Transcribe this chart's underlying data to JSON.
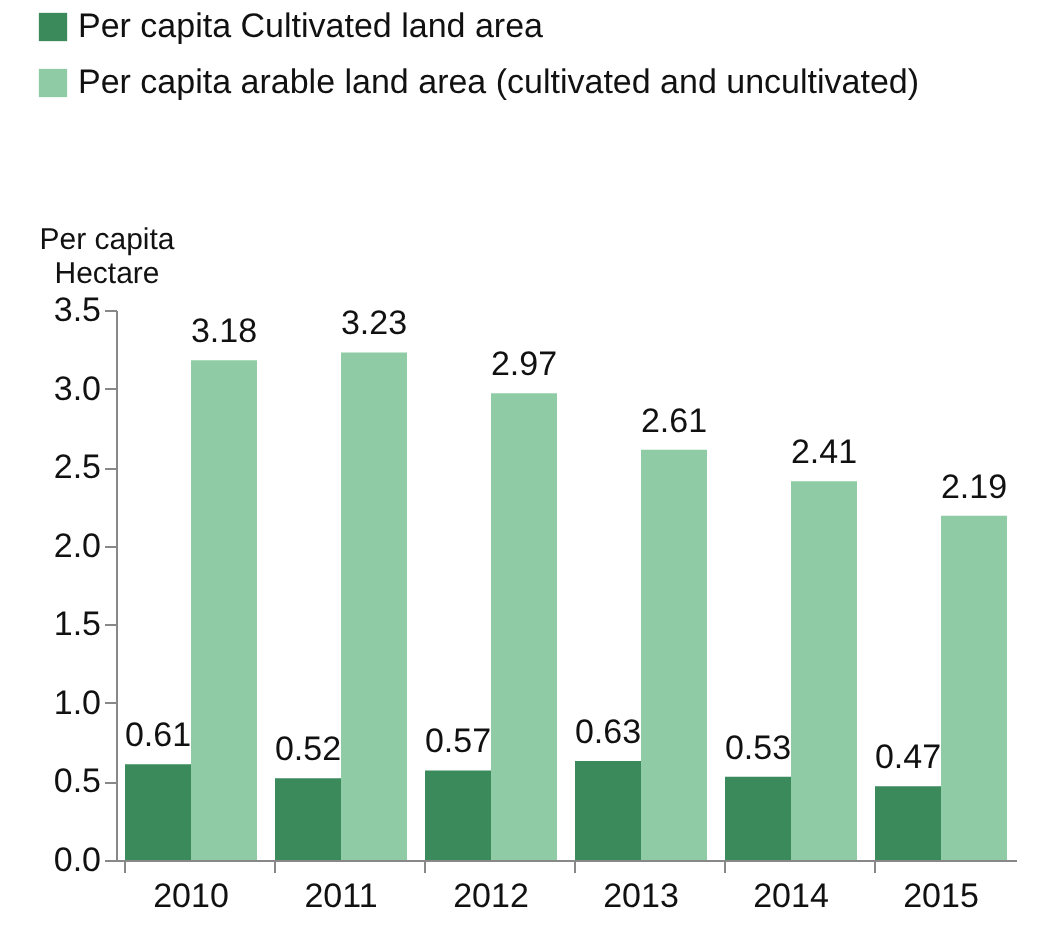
{
  "chart_data": {
    "type": "bar",
    "ylabel": "Per capita Hectare",
    "categories": [
      "2010",
      "2011",
      "2012",
      "2013",
      "2014",
      "2015"
    ],
    "series": [
      {
        "name": "Per capita Cultivated land area",
        "color": "#3b8a5c",
        "values": [
          0.61,
          0.52,
          0.57,
          0.63,
          0.53,
          0.47
        ]
      },
      {
        "name": "Per capita arable land area (cultivated and uncultivated)",
        "color": "#8fcca5",
        "values": [
          3.18,
          3.23,
          2.97,
          2.61,
          2.41,
          2.19
        ]
      }
    ],
    "ylim": [
      0,
      3.5
    ],
    "yticks": [
      {
        "value": 0,
        "label": "0.0"
      },
      {
        "value": 0.5,
        "label": "0.5"
      },
      {
        "value": 1,
        "label": "1.0"
      },
      {
        "value": 1.5,
        "label": "1.5"
      },
      {
        "value": 2,
        "label": "2.0"
      },
      {
        "value": 2.5,
        "label": "2.5"
      },
      {
        "value": 3,
        "label": "3.0"
      },
      {
        "value": 3.5,
        "label": "3.5"
      }
    ],
    "data_labels": true,
    "grid": false,
    "legend": "top"
  }
}
